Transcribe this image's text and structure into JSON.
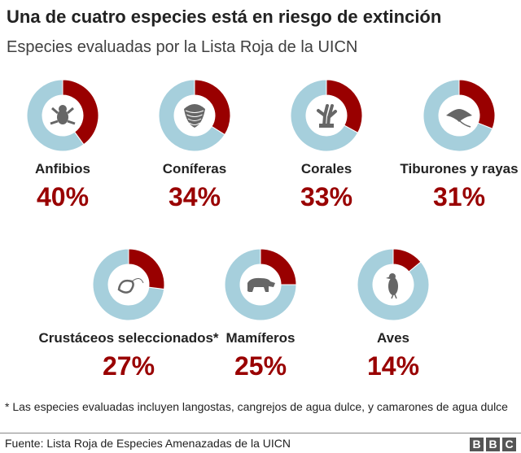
{
  "header": {
    "title": "Una de cuatro especies está en riesgo de extinción",
    "subtitle": "Especies evaluadas por la Lista Roja de la UICN"
  },
  "chart_data": {
    "type": "pie",
    "variant": "donut",
    "colors": {
      "at_risk": "#990000",
      "rest": "#a6cfdc",
      "icon": "#666666",
      "percent_text": "#990000"
    },
    "items": [
      {
        "label": "Anfibios",
        "value": 40,
        "display": "40%",
        "icon": "frog-icon"
      },
      {
        "label": "Coníferas",
        "value": 34,
        "display": "34%",
        "icon": "pinecone-icon"
      },
      {
        "label": "Corales",
        "value": 33,
        "display": "33%",
        "icon": "coral-icon"
      },
      {
        "label": "Tiburones y rayas",
        "value": 31,
        "display": "31%",
        "icon": "ray-icon"
      },
      {
        "label": "Crustáceos seleccionados*",
        "value": 27,
        "display": "27%",
        "icon": "shrimp-icon"
      },
      {
        "label": "Mamíferos",
        "value": 25,
        "display": "25%",
        "icon": "bear-icon"
      },
      {
        "label": "Aves",
        "value": 14,
        "display": "14%",
        "icon": "bird-icon"
      }
    ]
  },
  "footer": {
    "note": "* Las especies evaluadas incluyen langostas, cangrejos de agua dulce, y camarones de agua dulce",
    "source": "Fuente: Lista Roja de Especies Amenazadas de la UICN",
    "logo": [
      "B",
      "B",
      "C"
    ]
  }
}
